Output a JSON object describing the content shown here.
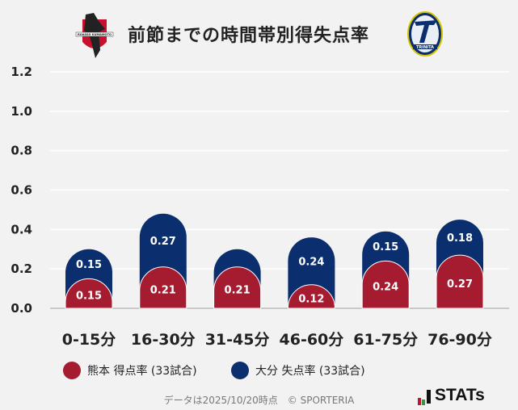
{
  "header": {
    "title": "前節までの時間帯別得失点率",
    "home_logo": "roasso-kumamoto-crest",
    "away_logo": "oita-trinita-crest",
    "home_logo_text": "ROASSO KUMAMOTO",
    "away_logo_text": "TRINITA"
  },
  "chart_data": {
    "type": "bar",
    "stacked": true,
    "categories": [
      "0-15分",
      "16-30分",
      "31-45分",
      "46-60分",
      "61-75分",
      "76-90分"
    ],
    "series": [
      {
        "name": "熊本 得点率 (33試合)",
        "color": "#a51c30",
        "values": [
          0.15,
          0.21,
          0.21,
          0.12,
          0.24,
          0.27
        ]
      },
      {
        "name": "大分 失点率 (33試合)",
        "color": "#0b2f6e",
        "values": [
          0.15,
          0.27,
          0.09,
          0.24,
          0.15,
          0.18
        ],
        "labels": [
          "0.15",
          "0.27",
          "",
          "0.24",
          "0.15",
          "0.18"
        ]
      }
    ],
    "yticks": [
      "0.0",
      "0.2",
      "0.4",
      "0.6",
      "0.8",
      "1.0",
      "1.2"
    ],
    "ylim": [
      0,
      1.2
    ],
    "grid": true,
    "legend": "bottom"
  },
  "footer": {
    "note": "データは2025/10/20時点　© SPORTERIA",
    "brand": "STATs"
  }
}
